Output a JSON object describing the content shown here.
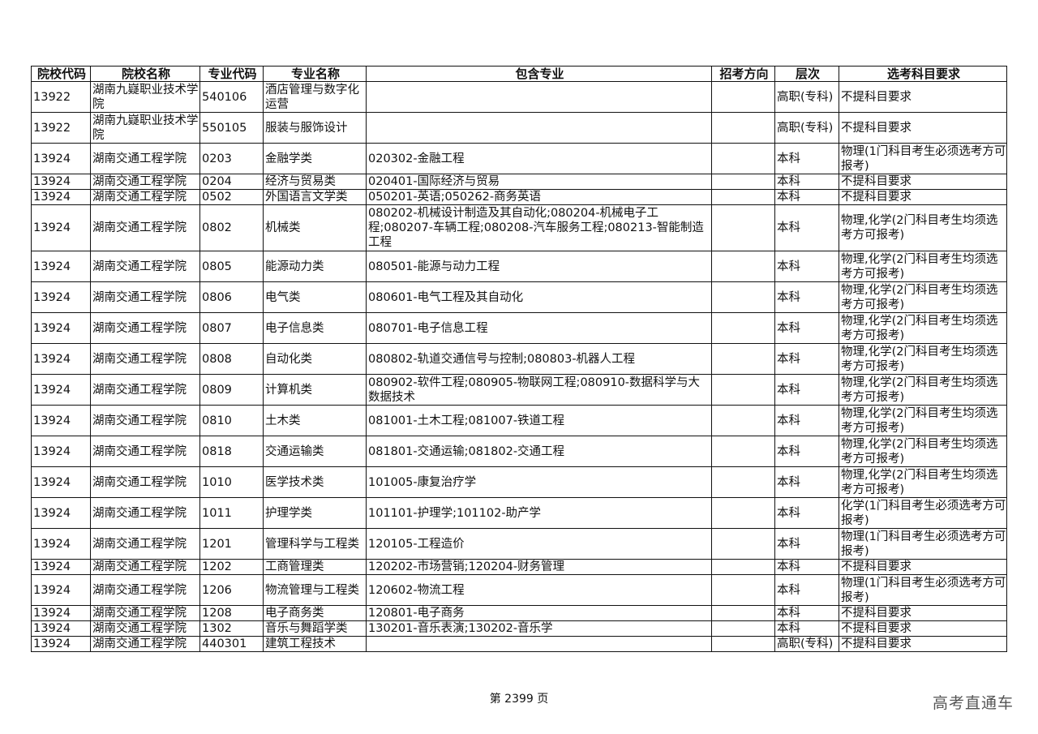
{
  "headers": [
    "院校代码",
    "院校名称",
    "专业代码",
    "专业名称",
    "包含专业",
    "招考方向",
    "层次",
    "选考科目要求"
  ],
  "rows": [
    [
      "13922",
      "湖南九嶷职业技术学院",
      "540106",
      "酒店管理与数字化运营",
      "",
      "",
      "高职(专科)",
      "不提科目要求"
    ],
    [
      "13922",
      "湖南九嶷职业技术学院",
      "550105",
      "服装与服饰设计",
      "",
      "",
      "高职(专科)",
      "不提科目要求"
    ],
    [
      "13924",
      "湖南交通工程学院",
      "0203",
      "金融学类",
      "020302-金融工程",
      "",
      "本科",
      "物理(1门科目考生必须选考方可报考)"
    ],
    [
      "13924",
      "湖南交通工程学院",
      "0204",
      "经济与贸易类",
      "020401-国际经济与贸易",
      "",
      "本科",
      "不提科目要求"
    ],
    [
      "13924",
      "湖南交通工程学院",
      "0502",
      "外国语言文学类",
      "050201-英语;050262-商务英语",
      "",
      "本科",
      "不提科目要求"
    ],
    [
      "13924",
      "湖南交通工程学院",
      "0802",
      "机械类",
      "080202-机械设计制造及其自动化;080204-机械电子工程;080207-车辆工程;080208-汽车服务工程;080213-智能制造工程",
      "",
      "本科",
      "物理,化学(2门科目考生均须选考方可报考)"
    ],
    [
      "13924",
      "湖南交通工程学院",
      "0805",
      "能源动力类",
      "080501-能源与动力工程",
      "",
      "本科",
      "物理,化学(2门科目考生均须选考方可报考)"
    ],
    [
      "13924",
      "湖南交通工程学院",
      "0806",
      "电气类",
      "080601-电气工程及其自动化",
      "",
      "本科",
      "物理,化学(2门科目考生均须选考方可报考)"
    ],
    [
      "13924",
      "湖南交通工程学院",
      "0807",
      "电子信息类",
      "080701-电子信息工程",
      "",
      "本科",
      "物理,化学(2门科目考生均须选考方可报考)"
    ],
    [
      "13924",
      "湖南交通工程学院",
      "0808",
      "自动化类",
      "080802-轨道交通信号与控制;080803-机器人工程",
      "",
      "本科",
      "物理,化学(2门科目考生均须选考方可报考)"
    ],
    [
      "13924",
      "湖南交通工程学院",
      "0809",
      "计算机类",
      "080902-软件工程;080905-物联网工程;080910-数据科学与大数据技术",
      "",
      "本科",
      "物理,化学(2门科目考生均须选考方可报考)"
    ],
    [
      "13924",
      "湖南交通工程学院",
      "0810",
      "土木类",
      "081001-土木工程;081007-铁道工程",
      "",
      "本科",
      "物理,化学(2门科目考生均须选考方可报考)"
    ],
    [
      "13924",
      "湖南交通工程学院",
      "0818",
      "交通运输类",
      "081801-交通运输;081802-交通工程",
      "",
      "本科",
      "物理,化学(2门科目考生均须选考方可报考)"
    ],
    [
      "13924",
      "湖南交通工程学院",
      "1010",
      "医学技术类",
      "101005-康复治疗学",
      "",
      "本科",
      "物理,化学(2门科目考生均须选考方可报考)"
    ],
    [
      "13924",
      "湖南交通工程学院",
      "1011",
      "护理学类",
      "101101-护理学;101102-助产学",
      "",
      "本科",
      "化学(1门科目考生必须选考方可报考)"
    ],
    [
      "13924",
      "湖南交通工程学院",
      "1201",
      "管理科学与工程类",
      "120105-工程造价",
      "",
      "本科",
      "物理(1门科目考生必须选考方可报考)"
    ],
    [
      "13924",
      "湖南交通工程学院",
      "1202",
      "工商管理类",
      "120202-市场营销;120204-财务管理",
      "",
      "本科",
      "不提科目要求"
    ],
    [
      "13924",
      "湖南交通工程学院",
      "1206",
      "物流管理与工程类",
      "120602-物流工程",
      "",
      "本科",
      "物理(1门科目考生必须选考方可报考)"
    ],
    [
      "13924",
      "湖南交通工程学院",
      "1208",
      "电子商务类",
      "120801-电子商务",
      "",
      "本科",
      "不提科目要求"
    ],
    [
      "13924",
      "湖南交通工程学院",
      "1302",
      "音乐与舞蹈学类",
      "130201-音乐表演;130202-音乐学",
      "",
      "本科",
      "不提科目要求"
    ],
    [
      "13924",
      "湖南交通工程学院",
      "440301",
      "建筑工程技术",
      "",
      "",
      "高职(专科)",
      "不提科目要求"
    ]
  ],
  "footer": {
    "page": "第 2399 页",
    "brand": "高考直通车"
  }
}
